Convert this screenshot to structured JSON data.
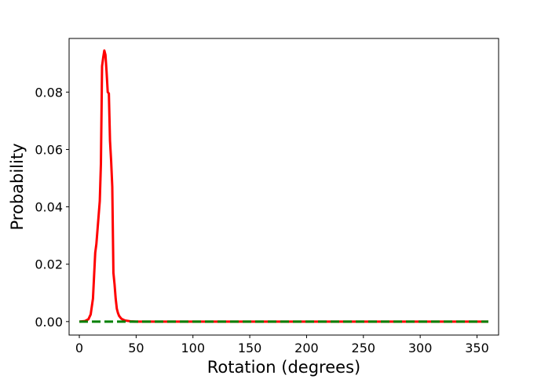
{
  "chart_data": {
    "type": "line",
    "title": "",
    "xlabel": "Rotation (degrees)",
    "ylabel": "Probability",
    "xlim": [
      -9,
      369
    ],
    "ylim": [
      -0.0047,
      0.0987
    ],
    "xticks": [
      0,
      50,
      100,
      150,
      200,
      250,
      300,
      350
    ],
    "yticks": [
      0.0,
      0.02,
      0.04,
      0.06,
      0.08
    ],
    "ytick_labels": [
      "0.00",
      "0.02",
      "0.04",
      "0.06",
      "0.08"
    ],
    "grid": false,
    "series": [
      {
        "color": "#ff0000",
        "style": "solid",
        "x": [
          0,
          5,
          8,
          10,
          12,
          14,
          15,
          16,
          17,
          18,
          19,
          20,
          21,
          22,
          23,
          24,
          25,
          26,
          27,
          28,
          29,
          30,
          31,
          32,
          33,
          34,
          35,
          37,
          40,
          45,
          50,
          60,
          100,
          200,
          300,
          360
        ],
        "y": [
          0.0,
          0.0002,
          0.0008,
          0.0025,
          0.008,
          0.024,
          0.027,
          0.032,
          0.037,
          0.042,
          0.055,
          0.089,
          0.092,
          0.0945,
          0.093,
          0.087,
          0.08,
          0.0795,
          0.063,
          0.056,
          0.047,
          0.017,
          0.013,
          0.008,
          0.0045,
          0.003,
          0.002,
          0.001,
          0.0004,
          0.0001,
          0.0,
          0.0,
          0.0,
          0.0,
          0.0,
          0.0
        ]
      },
      {
        "color": "#008000",
        "style": "dashed",
        "x": [
          0,
          360
        ],
        "y": [
          0.0,
          0.0
        ]
      }
    ]
  }
}
